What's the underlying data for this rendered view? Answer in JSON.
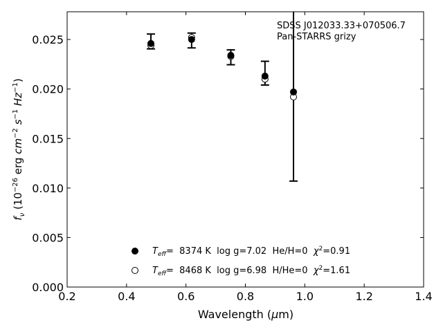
{
  "chart_data": {
    "type": "scatter",
    "xlabel_main": "Wavelength (",
    "xlabel_mu": "μ",
    "xlabel_tail": "m)",
    "ylabel": "fν (10⁻²⁶ erg cm⁻² s⁻¹ Hz⁻¹)",
    "xlim": [
      0.2,
      1.4
    ],
    "ylim": [
      0.0,
      0.0278
    ],
    "x_ticks": [
      "0.2",
      "0.4",
      "0.6",
      "0.8",
      "1.0",
      "1.2",
      "1.4"
    ],
    "y_ticks": [
      "0.000",
      "0.005",
      "0.010",
      "0.015",
      "0.020",
      "0.025"
    ],
    "grid": false,
    "annotation_line1": "SDSS J012033.33+070506.7",
    "annotation_line2": "Pan-STARRS grizy",
    "observed": {
      "x": [
        0.482,
        0.619,
        0.751,
        0.866,
        0.962
      ],
      "y": [
        0.0248,
        0.0249,
        0.0232,
        0.0216,
        0.0197
      ],
      "yerr": [
        0.00075,
        0.00075,
        0.00075,
        0.0012,
        0.009
      ]
    },
    "series": [
      {
        "name": "Teff= 8374 K  log g=7.02  He/H=0  χ2=0.91",
        "teff_label": "T",
        "teff_sub": "eff",
        "text": "=  8374 K  log g=7.02  He/H=0  ",
        "chi_sym": "χ",
        "chi_sup": "2",
        "chi_val": "=0.91",
        "marker": "filled",
        "x": [
          0.482,
          0.619,
          0.751,
          0.866,
          0.962
        ],
        "y": [
          0.0246,
          0.025,
          0.0234,
          0.0213,
          0.0197
        ]
      },
      {
        "name": "Teff= 8468 K  log g=6.98  H/He=0  χ2=1.61",
        "teff_label": "T",
        "teff_sub": "eff",
        "text": "=  8468 K  log g=6.98  H/He=0  ",
        "chi_sym": "χ",
        "chi_sup": "2",
        "chi_val": "=1.61",
        "marker": "open",
        "x": [
          0.482,
          0.619,
          0.751,
          0.866,
          0.962
        ],
        "y": [
          0.0244,
          0.0252,
          0.0233,
          0.021,
          0.0192
        ]
      }
    ]
  }
}
